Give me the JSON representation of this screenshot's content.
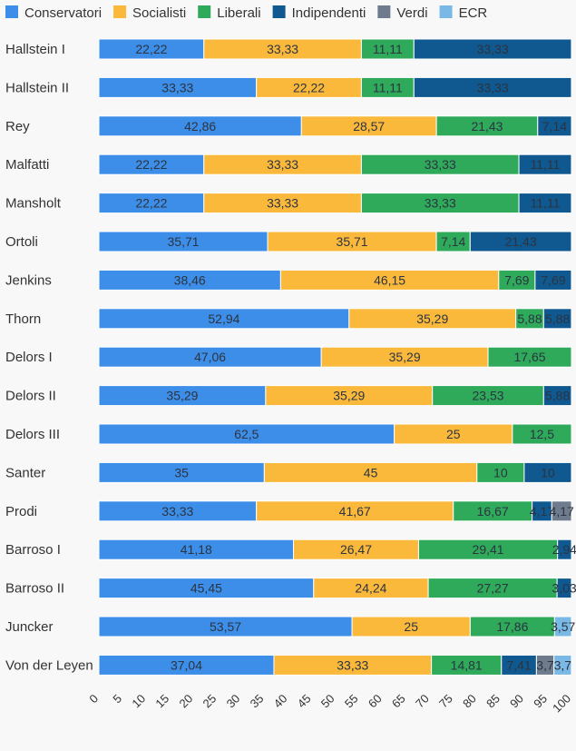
{
  "chart_data": {
    "type": "bar",
    "orientation": "horizontal",
    "stacked": true,
    "legend_position": "top-left",
    "grid": false,
    "xlim": [
      0,
      100
    ],
    "x_ticks": [
      0,
      5,
      10,
      15,
      20,
      25,
      30,
      35,
      40,
      45,
      50,
      55,
      60,
      65,
      70,
      75,
      80,
      85,
      90,
      95,
      100
    ],
    "categories": [
      "Hallstein I",
      "Hallstein II",
      "Rey",
      "Malfatti",
      "Mansholt",
      "Ortoli",
      "Jenkins",
      "Thorn",
      "Delors I",
      "Delors II",
      "Delors III",
      "Santer",
      "Prodi",
      "Barroso I",
      "Barroso II",
      "Juncker",
      "Von der Leyen"
    ],
    "series": [
      {
        "name": "Conservatori",
        "color": "#3d8ee8",
        "values": [
          22.22,
          33.33,
          42.86,
          22.22,
          22.22,
          35.71,
          38.46,
          52.94,
          47.06,
          35.29,
          62.5,
          35,
          33.33,
          41.18,
          45.45,
          53.57,
          37.04
        ]
      },
      {
        "name": "Socialisti",
        "color": "#fbb93c",
        "values": [
          33.33,
          22.22,
          28.57,
          33.33,
          33.33,
          35.71,
          46.15,
          35.29,
          35.29,
          35.29,
          25,
          45,
          41.67,
          26.47,
          24.24,
          25,
          33.33
        ]
      },
      {
        "name": "Liberali",
        "color": "#2eaa5a",
        "values": [
          11.11,
          11.11,
          21.43,
          33.33,
          33.33,
          7.14,
          7.69,
          5.88,
          17.65,
          23.53,
          12.5,
          10,
          16.67,
          29.41,
          27.27,
          17.86,
          14.81
        ]
      },
      {
        "name": "Indipendenti",
        "color": "#0f5890",
        "values": [
          33.33,
          33.33,
          7.14,
          11.11,
          11.11,
          21.43,
          7.69,
          5.88,
          0,
          5.88,
          0,
          10,
          4.17,
          2.94,
          3.03,
          0,
          7.41
        ]
      },
      {
        "name": "Verdi",
        "color": "#6e7b8c",
        "values": [
          0,
          0,
          0,
          0,
          0,
          0,
          0,
          0,
          0,
          0,
          0,
          0,
          4.17,
          0,
          0,
          0,
          3.7
        ]
      },
      {
        "name": "ECR",
        "color": "#7ab9e6",
        "values": [
          0,
          0,
          0,
          0,
          0,
          0,
          0,
          0,
          0,
          0,
          0,
          0,
          0,
          0,
          0,
          3.57,
          3.7
        ]
      }
    ],
    "data_labels": [
      [
        "22,22",
        "33,33",
        "11,11",
        "33,33",
        "",
        ""
      ],
      [
        "33,33",
        "22,22",
        "11,11",
        "33,33",
        "",
        ""
      ],
      [
        "42,86",
        "28,57",
        "21,43",
        "7,14",
        "",
        ""
      ],
      [
        "22,22",
        "33,33",
        "33,33",
        "11,11",
        "",
        ""
      ],
      [
        "22,22",
        "33,33",
        "33,33",
        "11,11",
        "",
        ""
      ],
      [
        "35,71",
        "35,71",
        "7,14",
        "21,43",
        "",
        ""
      ],
      [
        "38,46",
        "46,15",
        "7,69",
        "7,69",
        "",
        ""
      ],
      [
        "52,94",
        "35,29",
        "5,88",
        "5,88",
        "",
        ""
      ],
      [
        "47,06",
        "35,29",
        "17,65",
        "",
        "",
        ""
      ],
      [
        "35,29",
        "35,29",
        "23,53",
        "5,88",
        "",
        ""
      ],
      [
        "62,5",
        "25",
        "12,5",
        "",
        "",
        ""
      ],
      [
        "35",
        "45",
        "10",
        "10",
        "",
        ""
      ],
      [
        "33,33",
        "41,67",
        "16,67",
        "4,17",
        "4,17",
        ""
      ],
      [
        "41,18",
        "26,47",
        "29,41",
        "2,94",
        "",
        ""
      ],
      [
        "45,45",
        "24,24",
        "27,27",
        "3,03",
        "",
        ""
      ],
      [
        "53,57",
        "25",
        "17,86",
        "",
        "",
        "3,57"
      ],
      [
        "37,04",
        "33,33",
        "14,81",
        "7,41",
        "3,7",
        "3,7"
      ]
    ]
  }
}
